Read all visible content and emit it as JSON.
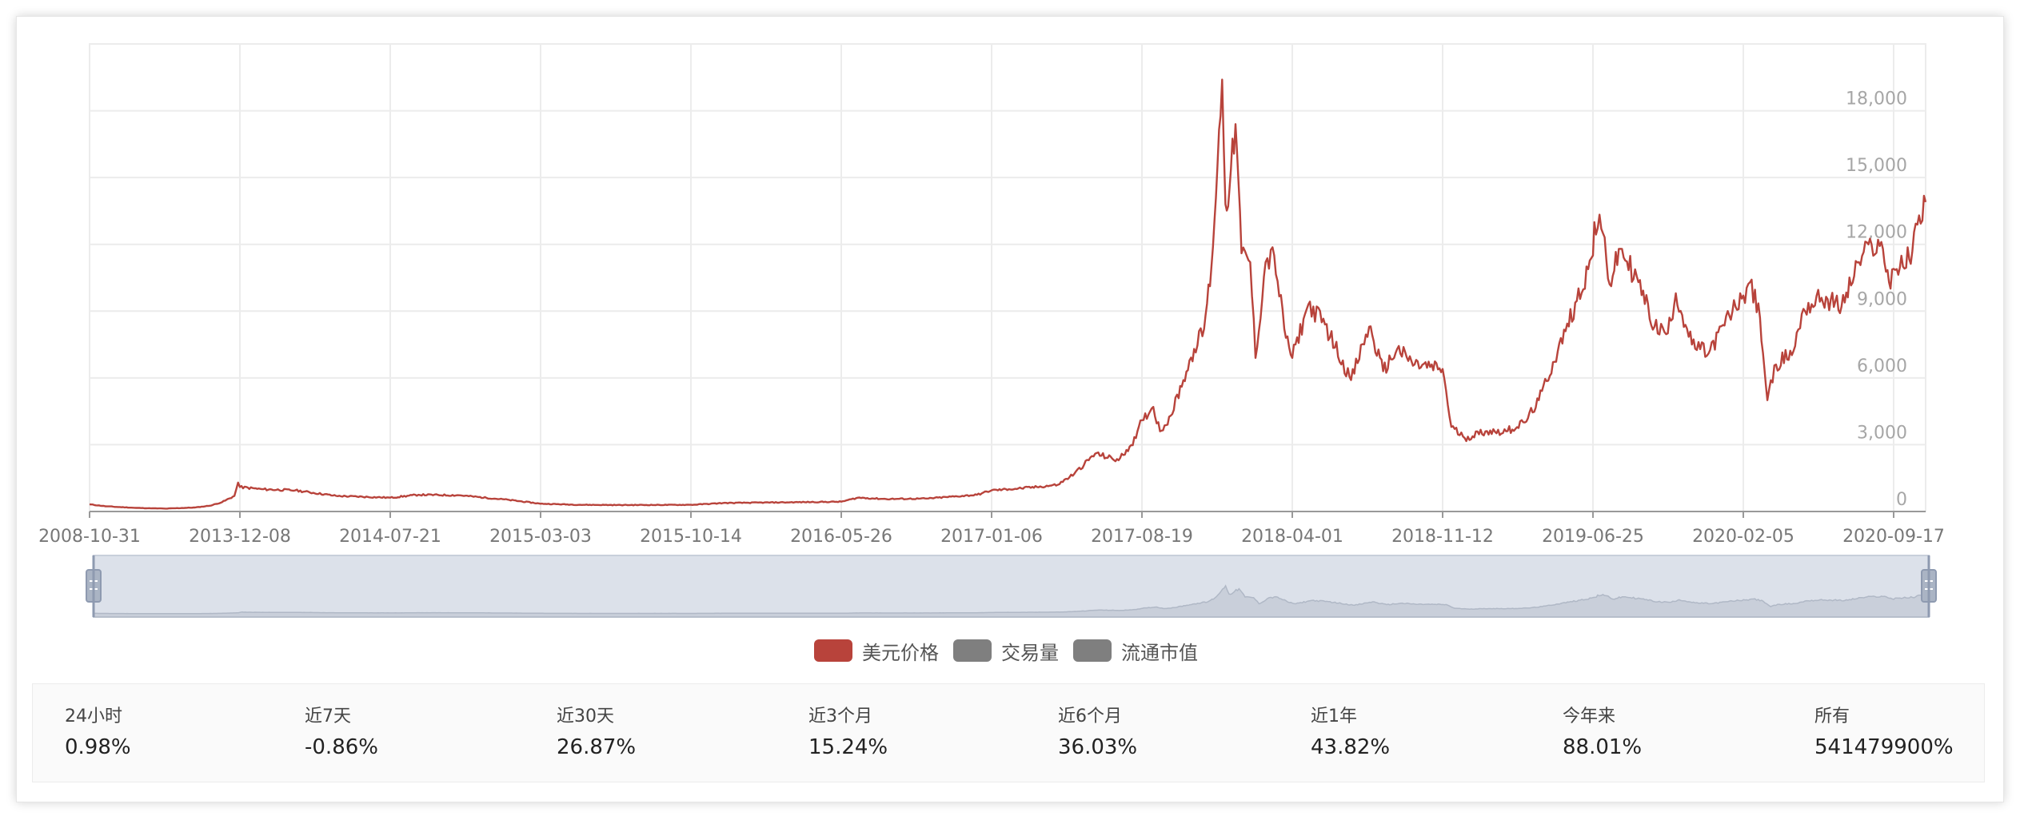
{
  "chart_data": {
    "type": "line",
    "series": [
      {
        "name": "美元价格",
        "color": "#b8433b",
        "points": [
          [
            "2008-10-31",
            320
          ],
          [
            "2009-06-01",
            230
          ],
          [
            "2010-06-01",
            160
          ],
          [
            "2011-06-01",
            130
          ],
          [
            "2012-06-01",
            180
          ],
          [
            "2012-12-01",
            260
          ],
          [
            "2013-05-01",
            420
          ],
          [
            "2013-10-01",
            700
          ],
          [
            "2013-11-15",
            1300
          ],
          [
            "2013-12-08",
            1100
          ],
          [
            "2014-01-10",
            1000
          ],
          [
            "2014-03-01",
            950
          ],
          [
            "2014-05-01",
            700
          ],
          [
            "2014-07-21",
            620
          ],
          [
            "2014-09-01",
            750
          ],
          [
            "2014-11-01",
            730
          ],
          [
            "2015-01-15",
            520
          ],
          [
            "2015-03-03",
            350
          ],
          [
            "2015-05-01",
            300
          ],
          [
            "2015-07-01",
            290
          ],
          [
            "2015-10-14",
            300
          ],
          [
            "2015-12-01",
            380
          ],
          [
            "2016-03-01",
            410
          ],
          [
            "2016-05-26",
            440
          ],
          [
            "2016-06-20",
            620
          ],
          [
            "2016-08-01",
            560
          ],
          [
            "2016-10-01",
            580
          ],
          [
            "2016-12-15",
            750
          ],
          [
            "2017-01-06",
            950
          ],
          [
            "2017-02-01",
            1000
          ],
          [
            "2017-03-15",
            1100
          ],
          [
            "2017-04-15",
            1200
          ],
          [
            "2017-05-10",
            1700
          ],
          [
            "2017-06-10",
            2600
          ],
          [
            "2017-07-15",
            2300
          ],
          [
            "2017-08-10",
            3300
          ],
          [
            "2017-08-19",
            4100
          ],
          [
            "2017-09-05",
            4700
          ],
          [
            "2017-09-15",
            3600
          ],
          [
            "2017-10-01",
            4300
          ],
          [
            "2017-10-20",
            5900
          ],
          [
            "2017-11-05",
            7300
          ],
          [
            "2017-11-20",
            8200
          ],
          [
            "2017-12-01",
            11000
          ],
          [
            "2017-12-10",
            15500
          ],
          [
            "2017-12-17",
            19400
          ],
          [
            "2017-12-22",
            13800
          ],
          [
            "2017-12-28",
            14500
          ],
          [
            "2018-01-06",
            17400
          ],
          [
            "2018-01-15",
            11600
          ],
          [
            "2018-01-28",
            11200
          ],
          [
            "2018-02-05",
            6900
          ],
          [
            "2018-02-20",
            11200
          ],
          [
            "2018-03-05",
            11500
          ],
          [
            "2018-03-20",
            8200
          ],
          [
            "2018-04-01",
            6900
          ],
          [
            "2018-04-25",
            9300
          ],
          [
            "2018-05-20",
            8400
          ],
          [
            "2018-06-28",
            5900
          ],
          [
            "2018-07-25",
            8300
          ],
          [
            "2018-08-15",
            6300
          ],
          [
            "2018-09-05",
            7300
          ],
          [
            "2018-10-01",
            6600
          ],
          [
            "2018-11-12",
            6400
          ],
          [
            "2018-11-25",
            3800
          ],
          [
            "2018-12-15",
            3300
          ],
          [
            "2019-01-15",
            3600
          ],
          [
            "2019-02-15",
            3600
          ],
          [
            "2019-03-15",
            4000
          ],
          [
            "2019-04-05",
            5000
          ],
          [
            "2019-05-15",
            8100
          ],
          [
            "2019-06-25",
            11500
          ],
          [
            "2019-06-27",
            13000
          ],
          [
            "2019-07-10",
            12500
          ],
          [
            "2019-07-20",
            10200
          ],
          [
            "2019-08-05",
            11800
          ],
          [
            "2019-09-01",
            10300
          ],
          [
            "2019-09-25",
            8300
          ],
          [
            "2019-10-15",
            8000
          ],
          [
            "2019-10-27",
            9800
          ],
          [
            "2019-11-20",
            7500
          ],
          [
            "2019-12-15",
            7100
          ],
          [
            "2020-01-15",
            8800
          ],
          [
            "2020-02-05",
            9700
          ],
          [
            "2020-02-15",
            10300
          ],
          [
            "2020-03-01",
            8700
          ],
          [
            "2020-03-12",
            5000
          ],
          [
            "2020-03-25",
            6600
          ],
          [
            "2020-04-20",
            7200
          ],
          [
            "2020-05-05",
            9100
          ],
          [
            "2020-06-01",
            9600
          ],
          [
            "2020-07-01",
            9200
          ],
          [
            "2020-07-27",
            11200
          ],
          [
            "2020-08-15",
            12000
          ],
          [
            "2020-09-01",
            11800
          ],
          [
            "2020-09-10",
            10300
          ],
          [
            "2020-09-17",
            10900
          ],
          [
            "2020-10-01",
            11000
          ],
          [
            "2020-10-15",
            11700
          ],
          [
            "2020-10-25",
            13300
          ],
          [
            "2020-11-04",
            13900
          ]
        ]
      },
      {
        "name": "交易量",
        "color": "#7f7f7f",
        "points": []
      },
      {
        "name": "流通市值",
        "color": "#7f7f7f",
        "points": []
      }
    ],
    "xticks": [
      "2008-10-31",
      "2013-12-08",
      "2014-07-21",
      "2015-03-03",
      "2015-10-14",
      "2016-05-26",
      "2017-01-06",
      "2017-08-19",
      "2018-04-01",
      "2018-11-12",
      "2019-06-25",
      "2020-02-05",
      "2020-09-17"
    ],
    "yticks": [
      0,
      3000,
      6000,
      9000,
      12000,
      15000,
      18000
    ],
    "ytick_labels": [
      "0",
      "3,000",
      "6,000",
      "9,000",
      "12,000",
      "15,000",
      "18,000"
    ],
    "ylim": [
      0,
      21000
    ],
    "y_axis_side": "right",
    "grid": true,
    "legend_position": "bottom-center",
    "data_zoom": "bottom",
    "gridline_color": "#ececec"
  },
  "legend": [
    {
      "label": "美元价格",
      "color": "#b8433b"
    },
    {
      "label": "交易量",
      "color": "#7f7f7f"
    },
    {
      "label": "流通市值",
      "color": "#7f7f7f"
    }
  ],
  "stats": [
    {
      "label": "24小时",
      "value": "0.98%"
    },
    {
      "label": "近7天",
      "value": "-0.86%"
    },
    {
      "label": "近30天",
      "value": "26.87%"
    },
    {
      "label": "近3个月",
      "value": "15.24%"
    },
    {
      "label": "近6个月",
      "value": "36.03%"
    },
    {
      "label": "近1年",
      "value": "43.82%"
    },
    {
      "label": "今年来",
      "value": "88.01%"
    },
    {
      "label": "所有",
      "value": "541479900%"
    }
  ]
}
